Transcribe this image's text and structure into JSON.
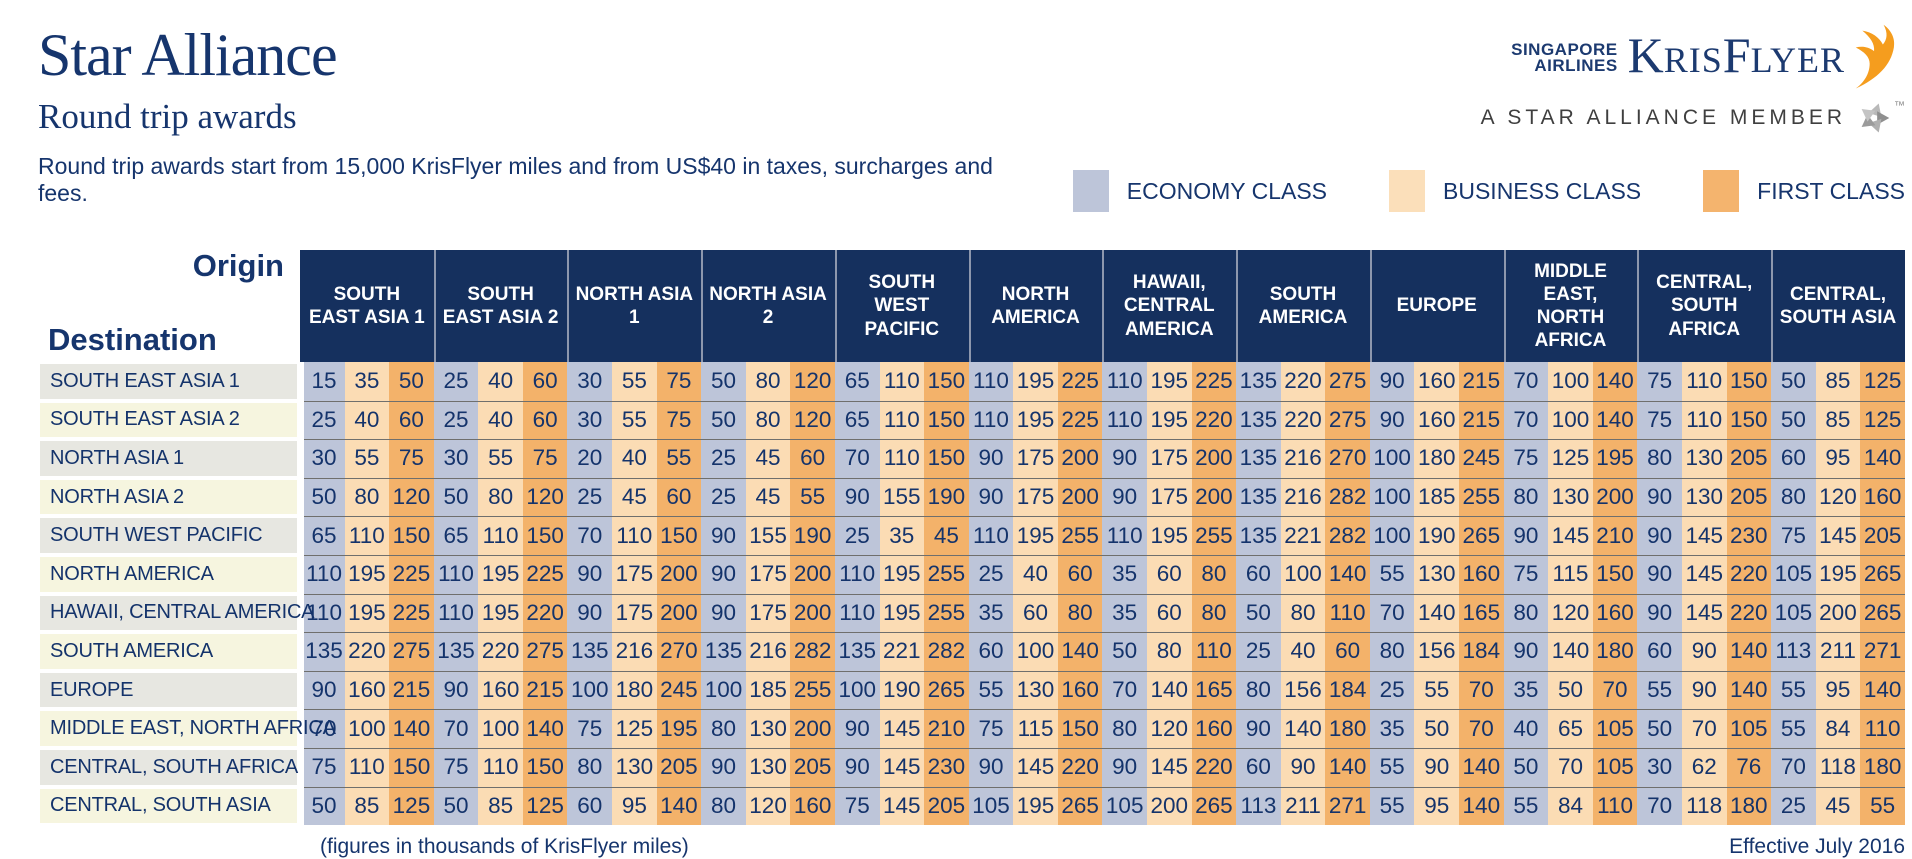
{
  "header": {
    "title": "Star Alliance",
    "subtitle": "Round trip awards",
    "description": "Round trip awards start from 15,000 KrisFlyer miles and from US$40 in taxes, surcharges and fees."
  },
  "brand": {
    "airline_line1": "SINGAPORE",
    "airline_line2": "AIRLINES",
    "program_k": "K",
    "program_ris": "RIS",
    "program_f": "F",
    "program_lyer": "LYER",
    "member_line": "A STAR ALLIANCE MEMBER",
    "trademark": "™"
  },
  "legend": [
    {
      "key": "economy",
      "label": "ECONOMY CLASS",
      "color": "#bdc5d9"
    },
    {
      "key": "business",
      "label": "BUSINESS CLASS",
      "color": "#fbdfba"
    },
    {
      "key": "first",
      "label": "FIRST CLASS",
      "color": "#f4b46e"
    }
  ],
  "table": {
    "origin_label": "Origin",
    "destination_label": "Destination",
    "footnote": "(figures in thousands of KrisFlyer miles)",
    "effective": "Effective July 2016"
  },
  "colors": {
    "economy": "#bdc5d9",
    "business": "#fbdcb4",
    "first": "#f3b26a",
    "header_bg": "#15305e",
    "text_navy": "#16356d",
    "row_label_odd": "#e7e7e1",
    "row_label_even": "#f6f5df"
  },
  "chart_data": {
    "type": "table",
    "title": "Star Alliance Round trip awards",
    "unit": "thousands of KrisFlyer miles",
    "cabin_classes": [
      "ECONOMY CLASS",
      "BUSINESS CLASS",
      "FIRST CLASS"
    ],
    "origins": [
      "SOUTH EAST ASIA 1",
      "SOUTH EAST ASIA 2",
      "NORTH ASIA 1",
      "NORTH ASIA 2",
      "SOUTH WEST PACIFIC",
      "NORTH AMERICA",
      "HAWAII, CENTRAL AMERICA",
      "SOUTH AMERICA",
      "EUROPE",
      "MIDDLE EAST, NORTH AFRICA",
      "CENTRAL, SOUTH AFRICA",
      "CENTRAL, SOUTH ASIA"
    ],
    "destinations": [
      "SOUTH EAST ASIA 1",
      "SOUTH EAST ASIA 2",
      "NORTH ASIA 1",
      "NORTH ASIA 2",
      "SOUTH WEST PACIFIC",
      "NORTH AMERICA",
      "HAWAII, CENTRAL AMERICA",
      "SOUTH AMERICA",
      "EUROPE",
      "MIDDLE EAST, NORTH AFRICA",
      "CENTRAL, SOUTH AFRICA",
      "CENTRAL, SOUTH ASIA"
    ],
    "awards": [
      [
        [
          15,
          35,
          50
        ],
        [
          25,
          40,
          60
        ],
        [
          30,
          55,
          75
        ],
        [
          50,
          80,
          120
        ],
        [
          65,
          110,
          150
        ],
        [
          110,
          195,
          225
        ],
        [
          110,
          195,
          225
        ],
        [
          135,
          220,
          275
        ],
        [
          90,
          160,
          215
        ],
        [
          70,
          100,
          140
        ],
        [
          75,
          110,
          150
        ],
        [
          50,
          85,
          125
        ]
      ],
      [
        [
          25,
          40,
          60
        ],
        [
          25,
          40,
          60
        ],
        [
          30,
          55,
          75
        ],
        [
          50,
          80,
          120
        ],
        [
          65,
          110,
          150
        ],
        [
          110,
          195,
          225
        ],
        [
          110,
          195,
          220
        ],
        [
          135,
          220,
          275
        ],
        [
          90,
          160,
          215
        ],
        [
          70,
          100,
          140
        ],
        [
          75,
          110,
          150
        ],
        [
          50,
          85,
          125
        ]
      ],
      [
        [
          30,
          55,
          75
        ],
        [
          30,
          55,
          75
        ],
        [
          20,
          40,
          55
        ],
        [
          25,
          45,
          60
        ],
        [
          70,
          110,
          150
        ],
        [
          90,
          175,
          200
        ],
        [
          90,
          175,
          200
        ],
        [
          135,
          216,
          270
        ],
        [
          100,
          180,
          245
        ],
        [
          75,
          125,
          195
        ],
        [
          80,
          130,
          205
        ],
        [
          60,
          95,
          140
        ]
      ],
      [
        [
          50,
          80,
          120
        ],
        [
          50,
          80,
          120
        ],
        [
          25,
          45,
          60
        ],
        [
          25,
          45,
          55
        ],
        [
          90,
          155,
          190
        ],
        [
          90,
          175,
          200
        ],
        [
          90,
          175,
          200
        ],
        [
          135,
          216,
          282
        ],
        [
          100,
          185,
          255
        ],
        [
          80,
          130,
          200
        ],
        [
          90,
          130,
          205
        ],
        [
          80,
          120,
          160
        ]
      ],
      [
        [
          65,
          110,
          150
        ],
        [
          65,
          110,
          150
        ],
        [
          70,
          110,
          150
        ],
        [
          90,
          155,
          190
        ],
        [
          25,
          35,
          45
        ],
        [
          110,
          195,
          255
        ],
        [
          110,
          195,
          255
        ],
        [
          135,
          221,
          282
        ],
        [
          100,
          190,
          265
        ],
        [
          90,
          145,
          210
        ],
        [
          90,
          145,
          230
        ],
        [
          75,
          145,
          205
        ]
      ],
      [
        [
          110,
          195,
          225
        ],
        [
          110,
          195,
          225
        ],
        [
          90,
          175,
          200
        ],
        [
          90,
          175,
          200
        ],
        [
          110,
          195,
          255
        ],
        [
          25,
          40,
          60
        ],
        [
          35,
          60,
          80
        ],
        [
          60,
          100,
          140
        ],
        [
          55,
          130,
          160
        ],
        [
          75,
          115,
          150
        ],
        [
          90,
          145,
          220
        ],
        [
          105,
          195,
          265
        ]
      ],
      [
        [
          110,
          195,
          225
        ],
        [
          110,
          195,
          220
        ],
        [
          90,
          175,
          200
        ],
        [
          90,
          175,
          200
        ],
        [
          110,
          195,
          255
        ],
        [
          35,
          60,
          80
        ],
        [
          35,
          60,
          80
        ],
        [
          50,
          80,
          110
        ],
        [
          70,
          140,
          165
        ],
        [
          80,
          120,
          160
        ],
        [
          90,
          145,
          220
        ],
        [
          105,
          200,
          265
        ]
      ],
      [
        [
          135,
          220,
          275
        ],
        [
          135,
          220,
          275
        ],
        [
          135,
          216,
          270
        ],
        [
          135,
          216,
          282
        ],
        [
          135,
          221,
          282
        ],
        [
          60,
          100,
          140
        ],
        [
          50,
          80,
          110
        ],
        [
          25,
          40,
          60
        ],
        [
          80,
          156,
          184
        ],
        [
          90,
          140,
          180
        ],
        [
          60,
          90,
          140
        ],
        [
          113,
          211,
          271
        ]
      ],
      [
        [
          90,
          160,
          215
        ],
        [
          90,
          160,
          215
        ],
        [
          100,
          180,
          245
        ],
        [
          100,
          185,
          255
        ],
        [
          100,
          190,
          265
        ],
        [
          55,
          130,
          160
        ],
        [
          70,
          140,
          165
        ],
        [
          80,
          156,
          184
        ],
        [
          25,
          55,
          70
        ],
        [
          35,
          50,
          70
        ],
        [
          55,
          90,
          140
        ],
        [
          55,
          95,
          140
        ]
      ],
      [
        [
          70,
          100,
          140
        ],
        [
          70,
          100,
          140
        ],
        [
          75,
          125,
          195
        ],
        [
          80,
          130,
          200
        ],
        [
          90,
          145,
          210
        ],
        [
          75,
          115,
          150
        ],
        [
          80,
          120,
          160
        ],
        [
          90,
          140,
          180
        ],
        [
          35,
          50,
          70
        ],
        [
          40,
          65,
          105
        ],
        [
          50,
          70,
          105
        ],
        [
          55,
          84,
          110
        ]
      ],
      [
        [
          75,
          110,
          150
        ],
        [
          75,
          110,
          150
        ],
        [
          80,
          130,
          205
        ],
        [
          90,
          130,
          205
        ],
        [
          90,
          145,
          230
        ],
        [
          90,
          145,
          220
        ],
        [
          90,
          145,
          220
        ],
        [
          60,
          90,
          140
        ],
        [
          55,
          90,
          140
        ],
        [
          50,
          70,
          105
        ],
        [
          30,
          62,
          76
        ],
        [
          70,
          118,
          180
        ]
      ],
      [
        [
          50,
          85,
          125
        ],
        [
          50,
          85,
          125
        ],
        [
          60,
          95,
          140
        ],
        [
          80,
          120,
          160
        ],
        [
          75,
          145,
          205
        ],
        [
          105,
          195,
          265
        ],
        [
          105,
          200,
          265
        ],
        [
          113,
          211,
          271
        ],
        [
          55,
          95,
          140
        ],
        [
          55,
          84,
          110
        ],
        [
          70,
          118,
          180
        ],
        [
          25,
          45,
          55
        ]
      ]
    ]
  }
}
